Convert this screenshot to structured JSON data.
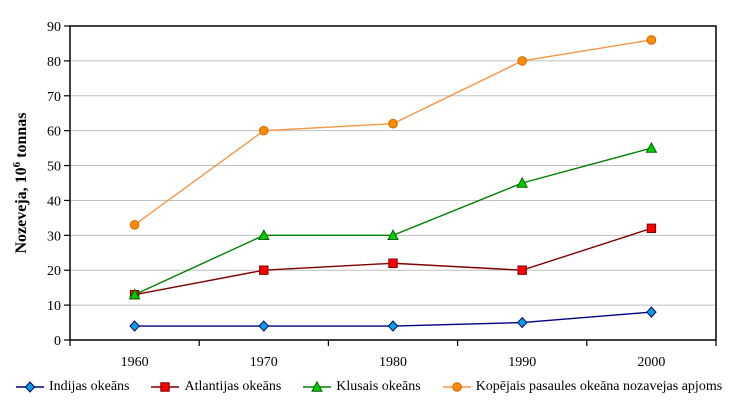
{
  "chart_data": {
    "type": "line",
    "title": "",
    "xlabel": "",
    "ylabel": "Nozeveja, 10⁶ tonnas",
    "ylabel_parts": [
      "Nozeveja, 10",
      "6",
      " tonnas"
    ],
    "categories": [
      "1960",
      "1970",
      "1980",
      "1990",
      "2000"
    ],
    "ylim": [
      0,
      90
    ],
    "y_ticks": [
      0,
      10,
      20,
      30,
      40,
      50,
      60,
      70,
      80,
      90
    ],
    "grid": true,
    "legend_position": "bottom",
    "gridline_color": "#c0c0c0",
    "axis_color": "#000000",
    "background_color": "#ffffff",
    "series": [
      {
        "name": "Indijas okeāns",
        "marker": "diamond",
        "line_color": "#000080",
        "marker_fill": "#00a0e9",
        "marker_stroke": "#000060",
        "values": [
          4,
          4,
          4,
          5,
          8
        ]
      },
      {
        "name": "Atlantijas okeāns",
        "marker": "square",
        "line_color": "#800000",
        "marker_fill": "#ff0000",
        "marker_stroke": "#800000",
        "values": [
          13,
          20,
          22,
          20,
          32
        ]
      },
      {
        "name": "Klusais okeāns",
        "marker": "triangle",
        "line_color": "#008000",
        "marker_fill": "#00cc00",
        "marker_stroke": "#006400",
        "values": [
          13,
          30,
          30,
          45,
          55
        ]
      },
      {
        "name": "Kopējais pasaules okeāna nozavejas apjoms",
        "marker": "circle",
        "line_color": "#f79646",
        "marker_fill": "#ff8c00",
        "marker_stroke": "#d06800",
        "values": [
          33,
          60,
          62,
          80,
          86
        ]
      }
    ]
  }
}
